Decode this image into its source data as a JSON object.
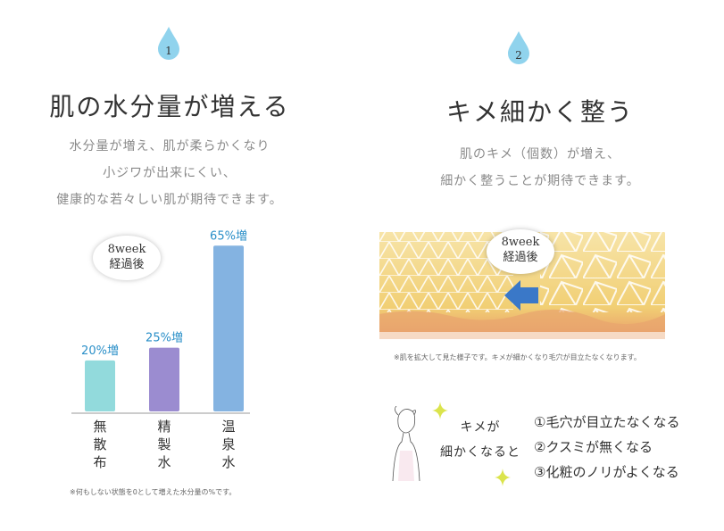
{
  "left": {
    "step": "1",
    "title": "肌の水分量が増える",
    "desc": [
      "水分量が増え、肌が柔らかくなり",
      "小ジワが出来にくい、",
      "健康的な若々しい肌が期待できます。"
    ],
    "bubble": [
      "8week",
      "経過後"
    ],
    "note": "※何もしない状態を0として増えた水分量の%です。"
  },
  "right": {
    "step": "2",
    "title": "キメ細かく整う",
    "desc": [
      "肌のキメ（個数）が増え、",
      "細かく整うことが期待できます。"
    ],
    "bubble": [
      "8week",
      "経過後"
    ],
    "note": "※肌を拡大して見た様子です。キメが細かくなり毛穴が目立たなくなります。",
    "lead": [
      "キメが",
      "細かくなると"
    ],
    "results": [
      "①毛穴が目立たなくなる",
      "②クスミが無くなる",
      "③化粧のノリがよくなる"
    ]
  },
  "chart_data": {
    "type": "bar",
    "categories": [
      "無散布",
      "精製水",
      "温泉水"
    ],
    "category_lines": [
      [
        "無",
        "散",
        "布"
      ],
      [
        "精",
        "製",
        "水"
      ],
      [
        "温",
        "泉",
        "水"
      ]
    ],
    "values": [
      20,
      25,
      65
    ],
    "data_labels": [
      "20%増",
      "25%増",
      "65%増"
    ],
    "colors": [
      "#7fd3d6",
      "#8a78c8",
      "#6fa6dc"
    ],
    "label_color": "#2a8fc8",
    "ylim": [
      0,
      70
    ],
    "grid": false,
    "title": "",
    "xlabel": "",
    "ylabel": ""
  },
  "colors": {
    "drop": "#6cc3e8",
    "text_muted": "#8a8a8a",
    "skin_yellow": "#f3d27a",
    "skin_red": "#e89a6a",
    "arrow": "#3a78c8",
    "sparkle": "#d8e34a"
  }
}
